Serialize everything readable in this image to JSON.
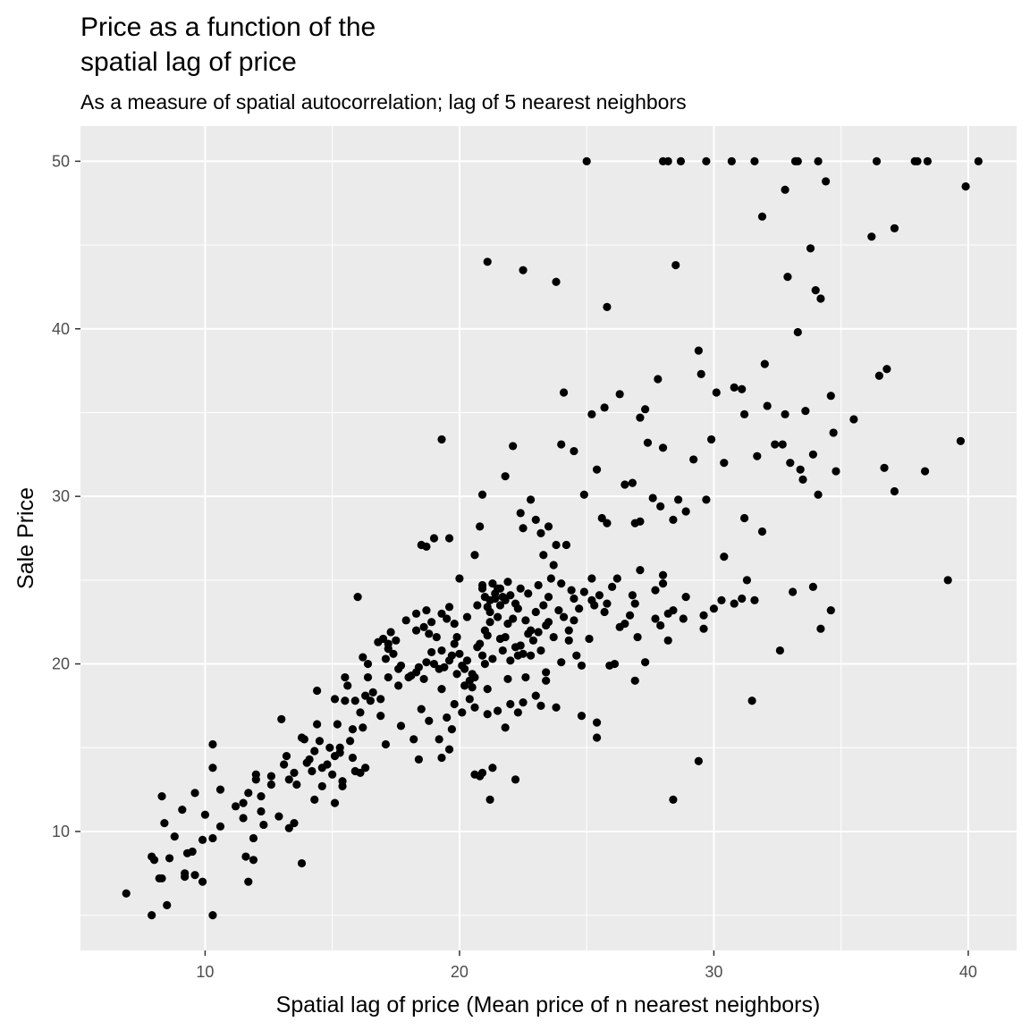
{
  "chart_data": {
    "type": "scatter",
    "title_lines": [
      "Price as a function of the",
      "spatial lag of price"
    ],
    "subtitle": "As a measure of spatial autocorrelation; lag of 5 nearest neighbors",
    "xlabel": "Spatial lag of price (Mean price of n nearest neighbors)",
    "ylabel": "Sale Price",
    "xlim": [
      5.1,
      41.9
    ],
    "ylim": [
      2.9,
      52.1
    ],
    "x_ticks": [
      10,
      20,
      30,
      40
    ],
    "y_ticks": [
      10,
      20,
      30,
      40,
      50
    ],
    "grid": true,
    "panel_background": "#ebebeb",
    "point_color": "#000000",
    "points": [
      [
        6.9,
        6.3
      ],
      [
        7.9,
        5.0
      ],
      [
        8.5,
        5.6
      ],
      [
        7.9,
        8.5
      ],
      [
        8.0,
        8.3
      ],
      [
        8.2,
        7.2
      ],
      [
        8.3,
        7.2
      ],
      [
        8.6,
        8.4
      ],
      [
        8.4,
        10.5
      ],
      [
        8.3,
        12.1
      ],
      [
        8.8,
        9.7
      ],
      [
        9.1,
        11.3
      ],
      [
        9.3,
        8.7
      ],
      [
        9.2,
        7.5
      ],
      [
        9.2,
        7.3
      ],
      [
        9.5,
        8.8
      ],
      [
        9.6,
        7.4
      ],
      [
        9.6,
        12.3
      ],
      [
        9.9,
        9.5
      ],
      [
        9.9,
        7.0
      ],
      [
        10.0,
        11.0
      ],
      [
        10.3,
        13.8
      ],
      [
        10.3,
        15.2
      ],
      [
        10.3,
        9.6
      ],
      [
        10.3,
        5.0
      ],
      [
        10.6,
        10.3
      ],
      [
        10.6,
        12.5
      ],
      [
        11.2,
        11.5
      ],
      [
        11.5,
        11.7
      ],
      [
        11.6,
        8.5
      ],
      [
        11.7,
        7.0
      ],
      [
        11.9,
        9.6
      ],
      [
        11.9,
        8.3
      ],
      [
        11.5,
        10.8
      ],
      [
        11.7,
        12.3
      ],
      [
        12.0,
        13.1
      ],
      [
        12.0,
        13.4
      ],
      [
        12.2,
        12.1
      ],
      [
        12.2,
        11.2
      ],
      [
        12.3,
        10.4
      ],
      [
        12.6,
        12.8
      ],
      [
        12.6,
        13.3
      ],
      [
        12.9,
        10.9
      ],
      [
        13.0,
        16.7
      ],
      [
        13.1,
        14.0
      ],
      [
        13.2,
        14.5
      ],
      [
        13.3,
        13.1
      ],
      [
        13.3,
        10.2
      ],
      [
        13.5,
        13.5
      ],
      [
        13.5,
        10.5
      ],
      [
        13.6,
        12.8
      ],
      [
        13.8,
        15.6
      ],
      [
        13.8,
        8.1
      ],
      [
        13.9,
        15.5
      ],
      [
        14.0,
        14.1
      ],
      [
        14.1,
        14.3
      ],
      [
        14.2,
        13.6
      ],
      [
        14.3,
        14.8
      ],
      [
        14.3,
        11.9
      ],
      [
        14.4,
        16.4
      ],
      [
        14.4,
        18.4
      ],
      [
        14.5,
        15.4
      ],
      [
        14.6,
        12.7
      ],
      [
        14.6,
        13.8
      ],
      [
        14.8,
        14.0
      ],
      [
        14.9,
        15.0
      ],
      [
        15.0,
        13.4
      ],
      [
        15.1,
        11.7
      ],
      [
        15.1,
        14.5
      ],
      [
        15.1,
        17.9
      ],
      [
        15.2,
        16.4
      ],
      [
        15.3,
        15.0
      ],
      [
        15.3,
        14.7
      ],
      [
        15.4,
        12.7
      ],
      [
        15.5,
        17.8
      ],
      [
        15.4,
        13.0
      ],
      [
        15.5,
        19.2
      ],
      [
        15.6,
        18.7
      ],
      [
        15.7,
        15.4
      ],
      [
        15.8,
        14.4
      ],
      [
        15.8,
        16.1
      ],
      [
        15.9,
        13.6
      ],
      [
        15.9,
        17.8
      ],
      [
        16.0,
        24.0
      ],
      [
        16.1,
        13.5
      ],
      [
        16.1,
        17.1
      ],
      [
        16.2,
        16.2
      ],
      [
        16.3,
        18.1
      ],
      [
        16.3,
        13.8
      ],
      [
        16.4,
        19.2
      ],
      [
        16.4,
        20.0
      ],
      [
        16.5,
        17.8
      ],
      [
        16.2,
        20.4
      ],
      [
        16.6,
        18.3
      ],
      [
        16.9,
        17.9
      ],
      [
        16.9,
        16.9
      ],
      [
        17.0,
        21.5
      ],
      [
        17.1,
        15.2
      ],
      [
        17.2,
        21.2
      ],
      [
        17.3,
        21.9
      ],
      [
        17.5,
        21.4
      ],
      [
        17.6,
        19.7
      ],
      [
        17.6,
        18.7
      ],
      [
        17.1,
        20.3
      ],
      [
        17.2,
        19.2
      ],
      [
        17.9,
        22.6
      ],
      [
        18.0,
        19.2
      ],
      [
        18.3,
        22.0
      ],
      [
        18.4,
        19.8
      ],
      [
        18.6,
        19.1
      ],
      [
        18.7,
        20.1
      ],
      [
        18.8,
        21.8
      ],
      [
        18.9,
        22.5
      ],
      [
        19.0,
        20.0
      ],
      [
        19.2,
        19.7
      ],
      [
        19.3,
        20.8
      ],
      [
        19.3,
        18.5
      ],
      [
        19.4,
        19.8
      ],
      [
        19.6,
        20.2
      ],
      [
        19.7,
        20.5
      ],
      [
        19.8,
        21.2
      ],
      [
        19.9,
        19.4
      ],
      [
        20.0,
        20.6
      ],
      [
        20.1,
        19.9
      ],
      [
        20.2,
        18.7
      ],
      [
        20.3,
        20.2
      ],
      [
        20.4,
        19.0
      ],
      [
        20.5,
        19.4
      ],
      [
        20.6,
        19.2
      ],
      [
        20.7,
        21.0
      ],
      [
        20.8,
        21.2
      ],
      [
        20.9,
        20.5
      ],
      [
        20.9,
        24.7
      ],
      [
        21.0,
        22.0
      ],
      [
        21.0,
        20.0
      ],
      [
        21.1,
        21.7
      ],
      [
        21.2,
        22.5
      ],
      [
        21.2,
        23.1
      ],
      [
        21.3,
        20.3
      ],
      [
        21.4,
        23.9
      ],
      [
        21.5,
        24.5
      ],
      [
        21.5,
        22.8
      ],
      [
        21.6,
        21.5
      ],
      [
        21.7,
        20.8
      ],
      [
        21.8,
        21.6
      ],
      [
        21.9,
        22.4
      ],
      [
        22.0,
        20.2
      ],
      [
        22.1,
        22.7
      ],
      [
        22.2,
        21.0
      ],
      [
        22.3,
        20.5
      ],
      [
        22.3,
        23.3
      ],
      [
        22.4,
        21.1
      ],
      [
        22.5,
        20.6
      ],
      [
        22.6,
        22.6
      ],
      [
        22.7,
        21.8
      ],
      [
        22.8,
        22.0
      ],
      [
        22.9,
        21.4
      ],
      [
        23.0,
        23.1
      ],
      [
        23.1,
        21.9
      ],
      [
        23.2,
        20.8
      ],
      [
        23.3,
        23.5
      ],
      [
        23.4,
        22.3
      ],
      [
        23.5,
        24.0
      ],
      [
        23.7,
        21.6
      ],
      [
        23.9,
        23.2
      ],
      [
        24.1,
        22.8
      ],
      [
        24.3,
        21.4
      ],
      [
        24.5,
        22.6
      ],
      [
        24.7,
        23.3
      ],
      [
        24.9,
        24.3
      ],
      [
        25.2,
        23.8
      ],
      [
        21.0,
        24.0
      ],
      [
        21.2,
        23.8
      ],
      [
        21.4,
        24.2
      ],
      [
        21.6,
        24.5
      ],
      [
        21.8,
        23.8
      ],
      [
        22.0,
        24.1
      ],
      [
        22.2,
        23.6
      ],
      [
        21.1,
        23.4
      ],
      [
        21.3,
        24.8
      ],
      [
        21.7,
        24.0
      ],
      [
        18.4,
        14.3
      ],
      [
        18.5,
        17.3
      ],
      [
        18.8,
        16.6
      ],
      [
        19.2,
        15.5
      ],
      [
        19.5,
        16.8
      ],
      [
        19.6,
        14.9
      ],
      [
        19.7,
        16.1
      ],
      [
        19.8,
        17.6
      ],
      [
        20.1,
        17.1
      ],
      [
        20.4,
        17.9
      ],
      [
        20.6,
        17.4
      ],
      [
        20.8,
        13.3
      ],
      [
        20.9,
        13.5
      ],
      [
        21.1,
        17.0
      ],
      [
        21.3,
        13.8
      ],
      [
        21.5,
        17.2
      ],
      [
        21.8,
        16.2
      ],
      [
        22.0,
        17.6
      ],
      [
        22.3,
        17.1
      ],
      [
        22.5,
        17.7
      ],
      [
        22.6,
        19.2
      ],
      [
        23.0,
        18.1
      ],
      [
        23.2,
        17.5
      ],
      [
        23.4,
        19.0
      ],
      [
        21.2,
        11.9
      ],
      [
        22.2,
        13.1
      ],
      [
        19.3,
        14.4
      ],
      [
        20.6,
        13.4
      ],
      [
        18.2,
        15.5
      ],
      [
        17.7,
        16.3
      ],
      [
        18.5,
        27.1
      ],
      [
        18.7,
        27.0
      ],
      [
        19.0,
        27.5
      ],
      [
        19.6,
        27.5
      ],
      [
        19.3,
        33.4
      ],
      [
        20.6,
        26.5
      ],
      [
        20.8,
        28.2
      ],
      [
        20.9,
        30.1
      ],
      [
        21.1,
        44.0
      ],
      [
        21.8,
        31.2
      ],
      [
        22.1,
        33.0
      ],
      [
        22.4,
        29.0
      ],
      [
        22.5,
        43.5
      ],
      [
        22.5,
        28.1
      ],
      [
        22.8,
        29.8
      ],
      [
        23.0,
        28.6
      ],
      [
        23.2,
        27.8
      ],
      [
        23.3,
        26.5
      ],
      [
        23.5,
        28.2
      ],
      [
        23.7,
        25.9
      ],
      [
        23.8,
        27.1
      ],
      [
        23.8,
        42.8
      ],
      [
        24.0,
        33.1
      ],
      [
        24.1,
        36.2
      ],
      [
        24.2,
        27.1
      ],
      [
        24.5,
        32.7
      ],
      [
        24.9,
        30.1
      ],
      [
        25.0,
        50.0
      ],
      [
        25.2,
        34.9
      ],
      [
        25.4,
        31.6
      ],
      [
        25.6,
        28.7
      ],
      [
        25.7,
        35.3
      ],
      [
        25.8,
        28.4
      ],
      [
        25.8,
        41.3
      ],
      [
        26.3,
        36.1
      ],
      [
        26.5,
        30.7
      ],
      [
        26.8,
        30.8
      ],
      [
        26.9,
        28.4
      ],
      [
        27.1,
        28.5
      ],
      [
        27.1,
        34.7
      ],
      [
        27.3,
        35.2
      ],
      [
        27.4,
        33.2
      ],
      [
        27.6,
        29.9
      ],
      [
        27.8,
        37.0
      ],
      [
        27.9,
        29.4
      ],
      [
        28.0,
        50.0
      ],
      [
        28.0,
        32.9
      ],
      [
        28.2,
        50.0
      ],
      [
        28.4,
        28.6
      ],
      [
        28.5,
        43.8
      ],
      [
        28.6,
        29.8
      ],
      [
        28.7,
        50.0
      ],
      [
        28.9,
        29.1
      ],
      [
        29.2,
        32.2
      ],
      [
        29.4,
        38.7
      ],
      [
        29.5,
        37.3
      ],
      [
        29.7,
        29.8
      ],
      [
        29.7,
        50.0
      ],
      [
        29.9,
        33.4
      ],
      [
        30.1,
        36.2
      ],
      [
        30.4,
        26.4
      ],
      [
        30.4,
        32.0
      ],
      [
        30.7,
        50.0
      ],
      [
        30.8,
        36.5
      ],
      [
        31.1,
        36.4
      ],
      [
        31.2,
        28.7
      ],
      [
        31.2,
        34.9
      ],
      [
        31.6,
        50.0
      ],
      [
        31.7,
        32.4
      ],
      [
        31.9,
        46.7
      ],
      [
        31.9,
        27.9
      ],
      [
        32.0,
        37.9
      ],
      [
        32.1,
        35.4
      ],
      [
        32.4,
        33.1
      ],
      [
        32.7,
        33.1
      ],
      [
        32.8,
        48.3
      ],
      [
        32.8,
        34.9
      ],
      [
        32.9,
        43.1
      ],
      [
        33.0,
        32.0
      ],
      [
        33.2,
        50.0
      ],
      [
        33.3,
        50.0
      ],
      [
        33.3,
        39.8
      ],
      [
        33.4,
        31.6
      ],
      [
        33.5,
        31.0
      ],
      [
        33.6,
        35.1
      ],
      [
        33.8,
        44.8
      ],
      [
        33.9,
        32.5
      ],
      [
        34.0,
        42.3
      ],
      [
        34.1,
        30.1
      ],
      [
        34.2,
        41.8
      ],
      [
        34.1,
        50.0
      ],
      [
        34.4,
        48.8
      ],
      [
        34.6,
        36.0
      ],
      [
        34.7,
        33.8
      ],
      [
        34.8,
        31.5
      ],
      [
        35.5,
        34.6
      ],
      [
        36.2,
        45.5
      ],
      [
        36.4,
        50.0
      ],
      [
        36.5,
        37.2
      ],
      [
        36.7,
        31.7
      ],
      [
        36.8,
        37.6
      ],
      [
        37.1,
        46.0
      ],
      [
        37.1,
        30.3
      ],
      [
        37.9,
        50.0
      ],
      [
        38.0,
        50.0
      ],
      [
        38.4,
        50.0
      ],
      [
        38.3,
        31.5
      ],
      [
        39.2,
        25.0
      ],
      [
        39.7,
        33.3
      ],
      [
        39.9,
        48.5
      ],
      [
        40.4,
        50.0
      ],
      [
        30.0,
        23.3
      ],
      [
        30.3,
        23.8
      ],
      [
        30.8,
        23.6
      ],
      [
        31.1,
        23.9
      ],
      [
        31.3,
        25.0
      ],
      [
        31.5,
        17.8
      ],
      [
        31.6,
        23.8
      ],
      [
        32.6,
        20.8
      ],
      [
        33.1,
        24.3
      ],
      [
        33.9,
        24.6
      ],
      [
        34.2,
        22.1
      ],
      [
        34.6,
        23.2
      ],
      [
        28.4,
        11.9
      ],
      [
        28.9,
        24.0
      ],
      [
        28.8,
        22.7
      ],
      [
        29.6,
        22.1
      ],
      [
        29.6,
        22.9
      ],
      [
        29.4,
        14.2
      ],
      [
        28.2,
        21.4
      ],
      [
        28.0,
        25.3
      ],
      [
        27.7,
        24.4
      ],
      [
        28.2,
        23.0
      ],
      [
        28.4,
        23.2
      ],
      [
        26.9,
        23.6
      ],
      [
        27.1,
        25.6
      ],
      [
        27.3,
        20.1
      ],
      [
        26.9,
        19.0
      ],
      [
        27.0,
        21.6
      ],
      [
        26.7,
        22.9
      ],
      [
        26.3,
        22.2
      ],
      [
        26.1,
        20.0
      ],
      [
        25.7,
        23.1
      ],
      [
        25.9,
        19.9
      ],
      [
        25.5,
        24.1
      ],
      [
        25.3,
        23.5
      ],
      [
        25.1,
        21.5
      ],
      [
        24.8,
        19.9
      ],
      [
        24.6,
        20.5
      ],
      [
        24.3,
        22.0
      ],
      [
        24.0,
        20.1
      ],
      [
        24.8,
        16.9
      ],
      [
        25.4,
        15.6
      ],
      [
        25.4,
        16.5
      ],
      [
        23.8,
        17.4
      ],
      [
        23.4,
        19.5
      ],
      [
        23.5,
        22.5
      ],
      [
        22.8,
        20.5
      ],
      [
        21.9,
        19.1
      ],
      [
        21.1,
        18.5
      ],
      [
        20.5,
        18.6
      ],
      [
        20.2,
        19.7
      ],
      [
        19.9,
        21.6
      ],
      [
        19.5,
        22.7
      ],
      [
        19.1,
        21.6
      ],
      [
        18.9,
        20.7
      ],
      [
        18.6,
        22.2
      ],
      [
        18.3,
        19.5
      ],
      [
        18.1,
        19.3
      ],
      [
        17.7,
        19.9
      ],
      [
        17.4,
        20.6
      ],
      [
        17.2,
        20.9
      ],
      [
        16.8,
        21.3
      ],
      [
        26.2,
        25.1
      ],
      [
        26.8,
        24.1
      ],
      [
        27.7,
        22.7
      ],
      [
        28.0,
        24.8
      ],
      [
        25.2,
        25.1
      ],
      [
        26.0,
        24.6
      ],
      [
        24.4,
        24.4
      ],
      [
        24.0,
        24.8
      ],
      [
        23.1,
        24.7
      ],
      [
        22.7,
        24.2
      ],
      [
        21.9,
        24.9
      ],
      [
        20.9,
        24.5
      ],
      [
        20.0,
        25.1
      ],
      [
        19.6,
        23.4
      ],
      [
        19.3,
        23.0
      ],
      [
        18.7,
        23.2
      ],
      [
        18.3,
        23.0
      ],
      [
        19.8,
        22.4
      ],
      [
        20.3,
        22.8
      ],
      [
        20.7,
        23.5
      ],
      [
        21.6,
        23.5
      ],
      [
        22.4,
        24.5
      ],
      [
        23.6,
        25.1
      ],
      [
        24.5,
        23.9
      ],
      [
        25.8,
        23.6
      ],
      [
        26.5,
        22.4
      ],
      [
        27.9,
        22.3
      ]
    ]
  }
}
